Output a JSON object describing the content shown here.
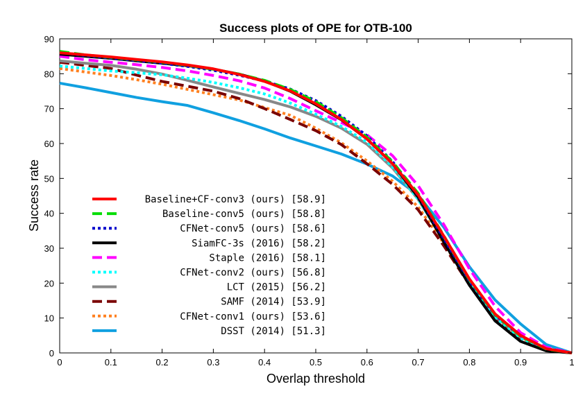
{
  "chart_data": {
    "type": "line",
    "title": "Success plots of OPE for OTB-100",
    "xlabel": "Overlap threshold",
    "ylabel": "Success rate",
    "xlim": [
      0,
      1
    ],
    "ylim": [
      0,
      90
    ],
    "xticks": [
      0,
      0.1,
      0.2,
      0.3,
      0.4,
      0.5,
      0.6,
      0.7,
      0.8,
      0.9,
      1
    ],
    "xtick_labels": [
      "0",
      "0.1",
      "0.2",
      "0.3",
      "0.4",
      "0.5",
      "0.6",
      "0.7",
      "0.8",
      "0.9",
      "1"
    ],
    "yticks": [
      0,
      10,
      20,
      30,
      40,
      50,
      60,
      70,
      80,
      90
    ],
    "ytick_labels": [
      "0",
      "10",
      "20",
      "30",
      "40",
      "50",
      "60",
      "70",
      "80",
      "90"
    ],
    "grid": false,
    "legend_position": "lower-left",
    "x": [
      0,
      0.05,
      0.1,
      0.15,
      0.2,
      0.25,
      0.3,
      0.35,
      0.4,
      0.45,
      0.5,
      0.55,
      0.6,
      0.65,
      0.7,
      0.75,
      0.8,
      0.85,
      0.9,
      0.95,
      1
    ],
    "series": [
      {
        "name": "Baseline+CF-conv3 (ours) [58.9]",
        "color": "#ff0000",
        "dash": "solid",
        "values": [
          86.0,
          85.4,
          84.8,
          84.1,
          83.4,
          82.5,
          81.4,
          79.8,
          77.8,
          75.1,
          71.4,
          66.9,
          61.3,
          54.2,
          45.3,
          33.5,
          21.2,
          11.2,
          5.0,
          1.2,
          0
        ]
      },
      {
        "name": "Baseline-conv5 (ours) [58.8]",
        "color": "#00dd00",
        "dash": "dashed",
        "values": [
          86.4,
          85.4,
          84.7,
          84.0,
          83.3,
          82.4,
          81.3,
          79.9,
          78.1,
          75.5,
          72.0,
          67.4,
          61.8,
          54.7,
          45.7,
          33.6,
          21.0,
          11.0,
          4.8,
          1.1,
          0
        ]
      },
      {
        "name": "CFNet-conv5 (ours) [58.6]",
        "color": "#0000cc",
        "dash": "dotted",
        "values": [
          86.1,
          85.2,
          84.5,
          83.8,
          83.0,
          82.1,
          81.0,
          79.6,
          77.9,
          75.6,
          72.3,
          67.8,
          62.2,
          54.8,
          45.1,
          32.8,
          20.6,
          10.9,
          4.9,
          1.2,
          0
        ]
      },
      {
        "name": "SiamFC-3s (2016) [58.2]",
        "color": "#000000",
        "dash": "solid",
        "values": [
          85.6,
          85.0,
          84.4,
          83.7,
          83.0,
          82.3,
          81.3,
          79.9,
          77.9,
          75.0,
          71.1,
          66.8,
          61.3,
          54.2,
          44.6,
          31.8,
          19.4,
          9.2,
          3.3,
          0.6,
          0
        ]
      },
      {
        "name": "Staple (2016) [58.1]",
        "color": "#ff00ff",
        "dash": "dashed",
        "values": [
          85.0,
          84.0,
          83.3,
          82.6,
          81.8,
          80.8,
          79.5,
          78.0,
          75.9,
          72.9,
          69.4,
          66.0,
          62.5,
          56.5,
          47.9,
          36.8,
          24.1,
          13.4,
          5.8,
          1.6,
          0
        ]
      },
      {
        "name": "CFNet-conv2 (ours) [56.8]",
        "color": "#00ffff",
        "dash": "dotted",
        "values": [
          82.2,
          81.5,
          80.8,
          80.3,
          79.7,
          78.7,
          77.5,
          76.0,
          74.2,
          71.6,
          68.4,
          64.9,
          60.4,
          53.3,
          44.0,
          32.1,
          20.0,
          10.3,
          4.2,
          1.1,
          0
        ]
      },
      {
        "name": "LCT (2015) [56.2]",
        "color": "#888888",
        "dash": "solid",
        "values": [
          83.7,
          83.0,
          82.4,
          81.3,
          79.9,
          78.1,
          76.2,
          74.4,
          72.6,
          70.5,
          67.8,
          64.4,
          59.8,
          53.0,
          44.0,
          32.4,
          20.3,
          10.5,
          4.5,
          1.2,
          0
        ]
      },
      {
        "name": "SAMF (2014) [53.9]",
        "color": "#7a0000",
        "dash": "dashed",
        "values": [
          83.3,
          82.4,
          81.5,
          79.6,
          77.8,
          76.4,
          75.0,
          72.9,
          70.0,
          66.9,
          63.7,
          59.7,
          54.2,
          48.3,
          41.0,
          30.7,
          19.5,
          10.1,
          4.2,
          1.1,
          0
        ]
      },
      {
        "name": "CFNet-conv1 (ours) [53.6]",
        "color": "#ff8020",
        "dash": "dotted",
        "values": [
          81.5,
          80.5,
          79.5,
          78.3,
          77.0,
          75.5,
          74.0,
          72.5,
          70.3,
          68.1,
          64.4,
          60.2,
          55.0,
          49.2,
          41.8,
          31.4,
          19.9,
          10.4,
          4.3,
          1.1,
          0
        ]
      },
      {
        "name": "DSST (2014) [51.3]",
        "color": "#10a0e0",
        "dash": "solid",
        "values": [
          77.3,
          76.0,
          74.6,
          73.2,
          72.0,
          70.9,
          68.8,
          66.6,
          64.2,
          61.6,
          59.3,
          57.0,
          54.1,
          50.7,
          45.2,
          36.0,
          24.7,
          15.2,
          8.3,
          2.4,
          0
        ]
      }
    ]
  }
}
